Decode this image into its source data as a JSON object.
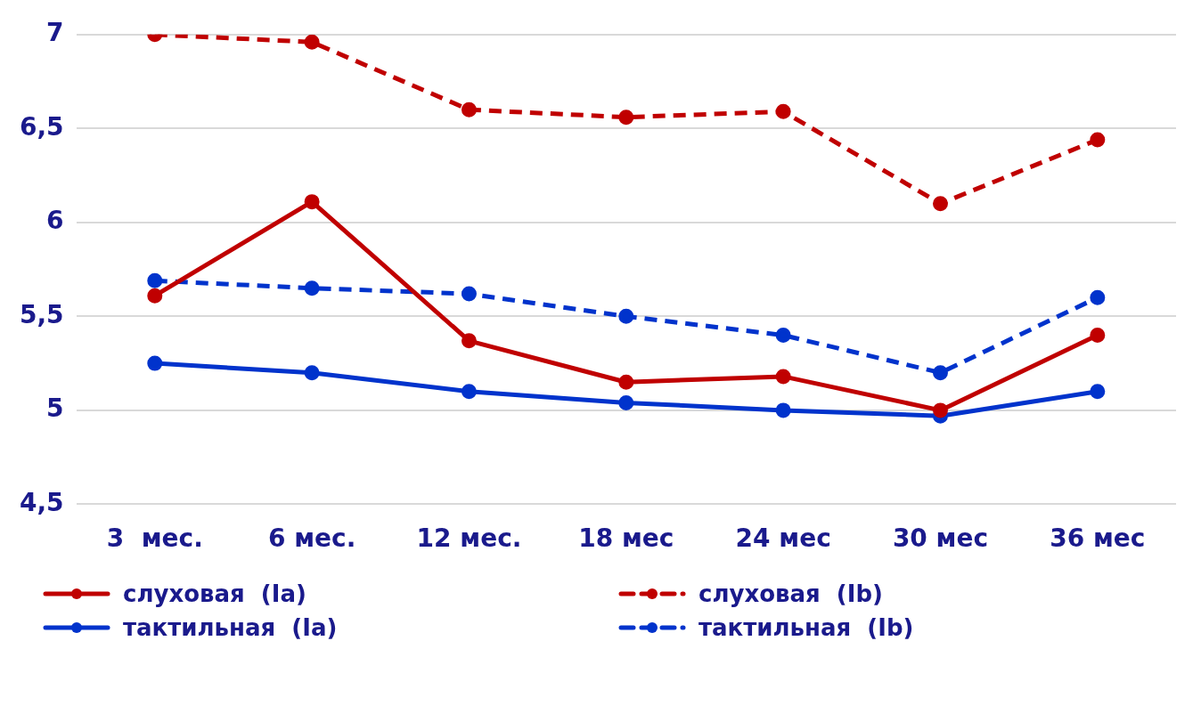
{
  "chart_data": {
    "type": "line",
    "categories": [
      "3  мес.",
      "6 мес.",
      "12 мес.",
      "18 мес",
      "24 мес",
      "30 мес",
      "36 мес"
    ],
    "series": [
      {
        "name": "слуховая  (Ia)",
        "color": "#c00000",
        "line_style": "solid",
        "values": [
          5.61,
          6.11,
          5.37,
          5.15,
          5.18,
          5.0,
          5.4
        ]
      },
      {
        "name": "слуховая  (Ib)",
        "color": "#c00000",
        "line_style": "dashed",
        "values": [
          7.0,
          6.96,
          6.6,
          6.56,
          6.59,
          6.1,
          6.44
        ]
      },
      {
        "name": "тактильная  (Ia)",
        "color": "#0033cc",
        "line_style": "solid",
        "values": [
          5.25,
          5.2,
          5.1,
          5.04,
          5.0,
          4.97,
          5.1
        ]
      },
      {
        "name": "тактильная  (Ib)",
        "color": "#0033cc",
        "line_style": "dashed",
        "values": [
          5.69,
          5.65,
          5.62,
          5.5,
          5.4,
          5.2,
          5.6
        ]
      }
    ],
    "ylim": [
      4.5,
      7
    ],
    "yticks": [
      {
        "value": 4.5,
        "label": "4,5"
      },
      5,
      {
        "value": 5.5,
        "label": "5,5"
      },
      6,
      {
        "value": 6.5,
        "label": "6,5"
      },
      7
    ],
    "grid": "y",
    "legend": "bottom",
    "marker": "circle"
  }
}
